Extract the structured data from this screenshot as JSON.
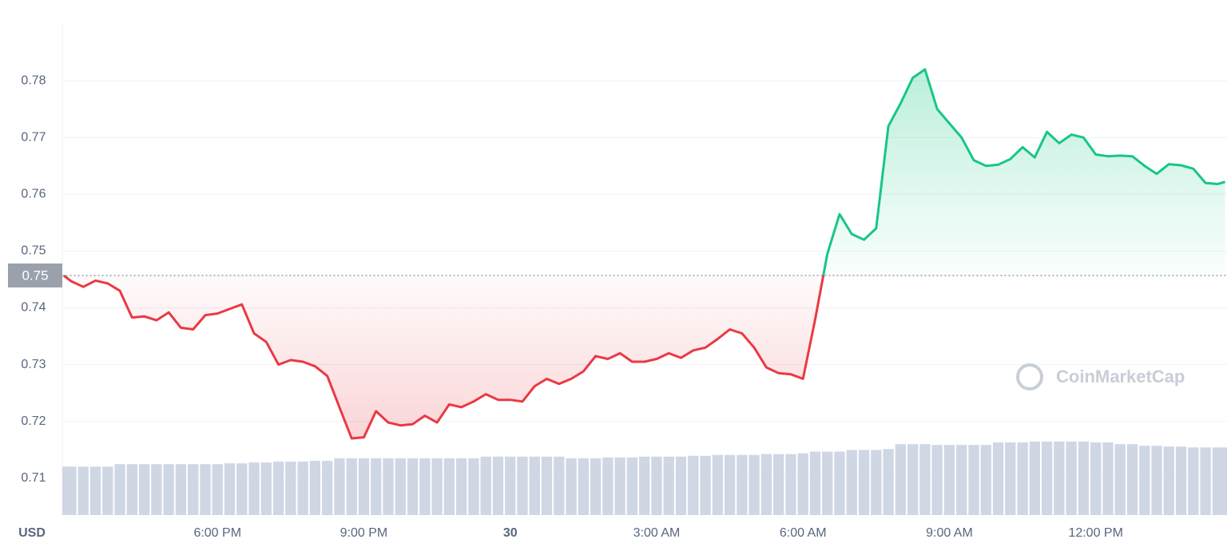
{
  "chart_data": {
    "type": "line",
    "axis_label": "USD",
    "watermark": "CoinMarketCap",
    "x": [
      14.85,
      15.0,
      15.25,
      15.5,
      15.75,
      16.0,
      16.25,
      16.5,
      16.75,
      17.0,
      17.25,
      17.5,
      17.75,
      18.0,
      18.25,
      18.5,
      18.75,
      19.0,
      19.25,
      19.5,
      19.75,
      20.0,
      20.25,
      20.5,
      20.75,
      21.0,
      21.25,
      21.5,
      21.75,
      22.0,
      22.25,
      22.5,
      22.75,
      23.0,
      23.25,
      23.5,
      23.75,
      24.0,
      24.25,
      24.5,
      24.75,
      25.0,
      25.25,
      25.5,
      25.75,
      26.0,
      26.25,
      26.5,
      26.75,
      27.0,
      27.25,
      27.5,
      27.75,
      28.0,
      28.25,
      28.5,
      28.75,
      29.0,
      29.25,
      29.5,
      29.75,
      30.0,
      30.25,
      30.5,
      30.75,
      31.0,
      31.25,
      31.5,
      31.75,
      32.0,
      32.25,
      32.5,
      32.75,
      33.0,
      33.25,
      33.5,
      33.75,
      34.0,
      34.25,
      34.5,
      34.75,
      35.0,
      35.25,
      35.5,
      35.75,
      36.0,
      36.25,
      36.5,
      36.75,
      37.0,
      37.25,
      37.5,
      37.75,
      38.0,
      38.25,
      38.5,
      38.65
    ],
    "values": [
      0.7457,
      0.7447,
      0.7437,
      0.7448,
      0.7443,
      0.743,
      0.7383,
      0.7385,
      0.7378,
      0.7392,
      0.7365,
      0.7362,
      0.7387,
      0.739,
      0.7398,
      0.7406,
      0.7355,
      0.734,
      0.73,
      0.7308,
      0.7305,
      0.7297,
      0.728,
      0.7225,
      0.717,
      0.7172,
      0.7218,
      0.7198,
      0.7193,
      0.7195,
      0.721,
      0.7198,
      0.723,
      0.7225,
      0.7235,
      0.7248,
      0.7238,
      0.7238,
      0.7235,
      0.7262,
      0.7275,
      0.7266,
      0.7275,
      0.7288,
      0.7315,
      0.731,
      0.732,
      0.7305,
      0.7305,
      0.731,
      0.732,
      0.7312,
      0.7325,
      0.733,
      0.7345,
      0.7362,
      0.7355,
      0.733,
      0.7295,
      0.7285,
      0.7283,
      0.7275,
      0.738,
      0.7495,
      0.7565,
      0.753,
      0.752,
      0.754,
      0.772,
      0.776,
      0.7805,
      0.782,
      0.775,
      0.7725,
      0.77,
      0.766,
      0.765,
      0.7652,
      0.7662,
      0.7683,
      0.7665,
      0.771,
      0.769,
      0.7705,
      0.77,
      0.767,
      0.7667,
      0.7668,
      0.7667,
      0.765,
      0.7636,
      0.7653,
      0.7651,
      0.7645,
      0.762,
      0.7618,
      0.7622
    ],
    "volume": [
      58,
      58,
      58,
      58,
      58,
      61,
      61,
      61,
      61,
      61,
      61,
      61,
      61,
      61,
      62,
      62,
      63,
      63,
      64,
      64,
      64,
      65,
      65,
      68,
      68,
      68,
      68,
      68,
      68,
      68,
      68,
      68,
      68,
      68,
      68,
      70,
      70,
      70,
      70,
      70,
      70,
      70,
      68,
      68,
      68,
      69,
      69,
      69,
      70,
      70,
      70,
      70,
      71,
      71,
      72,
      72,
      72,
      72,
      73,
      73,
      73,
      74,
      76,
      76,
      76,
      78,
      78,
      78,
      79,
      85,
      85,
      85,
      84,
      84,
      84,
      84,
      84,
      87,
      87,
      87,
      88,
      88,
      88,
      88,
      88,
      87,
      87,
      85,
      85,
      83,
      83,
      82,
      82,
      81,
      81,
      81,
      81
    ],
    "reference": {
      "value": 0.7457,
      "label": "0.75"
    },
    "above_color": "#16c784",
    "below_color": "#ea3943",
    "volume_color": "#cfd6e4",
    "xlim": [
      14.82,
      38.69
    ],
    "ylim": [
      0.7035,
      0.79
    ],
    "xticks": [
      {
        "value": 18,
        "label": "6:00 PM"
      },
      {
        "value": 21,
        "label": "9:00 PM"
      },
      {
        "value": 24,
        "label": "30"
      },
      {
        "value": 27,
        "label": "3:00 AM"
      },
      {
        "value": 30,
        "label": "6:00 AM"
      },
      {
        "value": 33,
        "label": "9:00 AM"
      },
      {
        "value": 36,
        "label": "12:00 PM"
      }
    ],
    "yticks": [
      0.71,
      0.72,
      0.73,
      0.74,
      0.75,
      0.76,
      0.77,
      0.78
    ],
    "grid": true
  }
}
